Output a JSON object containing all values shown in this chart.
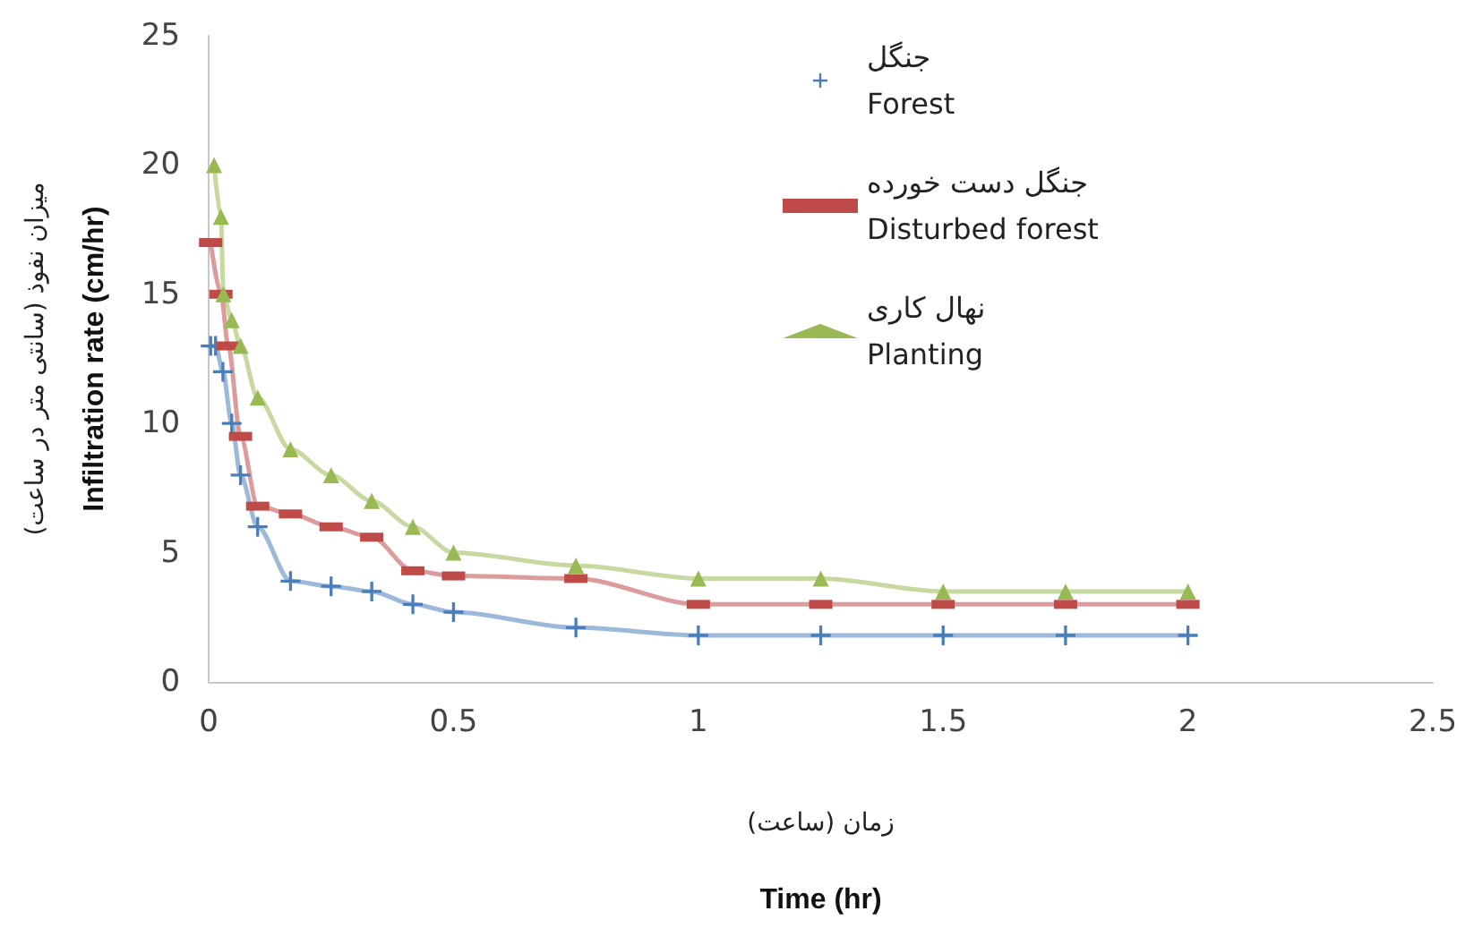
{
  "chart_data": {
    "type": "line",
    "xlabel": "زمان (ساعت)\nTime (hr)",
    "ylabel": "میزان نفوذ (سانتی متر در ساعت)\nInfiltration rate (cm/hr)",
    "xlim": [
      0,
      2.5
    ],
    "xticks": [
      0,
      0.5,
      1,
      1.5,
      2,
      2.5
    ],
    "ylim": [
      0,
      25
    ],
    "yticks": [
      0,
      5,
      10,
      15,
      20,
      25
    ],
    "grid": false,
    "legend": "top",
    "line_style": "solid",
    "series": [
      {
        "name": "جنگل\nForest",
        "color": "#4a7ebb",
        "marker": "cross",
        "x": [
          0.004,
          0.014,
          0.029,
          0.047,
          0.065,
          0.1,
          0.167,
          0.25,
          0.333,
          0.417,
          0.5,
          0.75,
          1,
          1.25,
          1.5,
          1.75,
          2
        ],
        "values": [
          13,
          13,
          12,
          10,
          8,
          6,
          3.9,
          3.7,
          3.5,
          3.0,
          2.7,
          2.1,
          1.8,
          1.8,
          1.8,
          1.8,
          1.8
        ]
      },
      {
        "name": "جنگل دست خورده\nDisturbed forest",
        "color": "#be4b48",
        "marker": "square",
        "x": [
          0.004,
          0.025,
          0.04,
          0.065,
          0.1,
          0.167,
          0.25,
          0.333,
          0.417,
          0.5,
          0.75,
          1,
          1.25,
          1.5,
          1.75,
          2
        ],
        "values": [
          17,
          15,
          13,
          9.5,
          6.8,
          6.5,
          6.0,
          5.6,
          4.3,
          4.1,
          4.0,
          3.0,
          3.0,
          3.0,
          3.0,
          3.0
        ]
      },
      {
        "name": "نهال کاری\nPlanting",
        "color": "#98b954",
        "marker": "triangle",
        "x": [
          0.011,
          0.025,
          0.03,
          0.047,
          0.065,
          0.1,
          0.167,
          0.25,
          0.333,
          0.417,
          0.5,
          0.75,
          1,
          1.25,
          1.5,
          1.75,
          2
        ],
        "values": [
          20,
          18,
          15,
          14,
          13,
          11,
          9,
          8,
          7,
          6,
          5,
          4.5,
          4.0,
          4.0,
          3.5,
          3.5,
          3.5
        ]
      }
    ]
  }
}
